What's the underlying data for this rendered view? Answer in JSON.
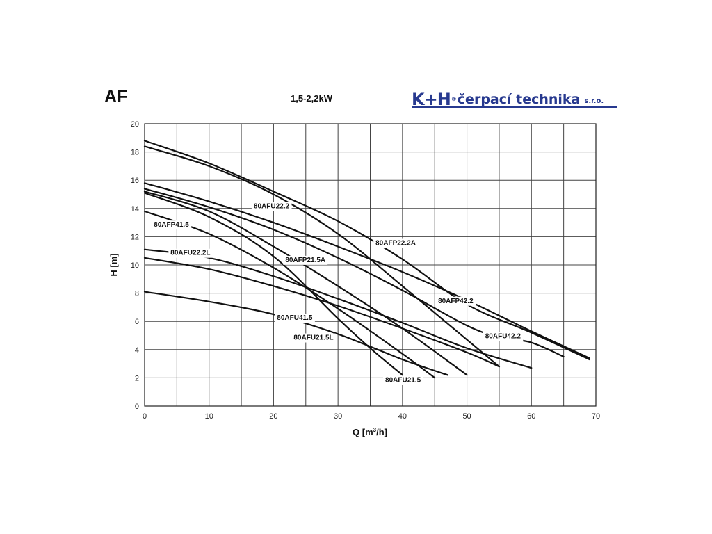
{
  "header": {
    "title": "AF",
    "subtitle": "1,5-2,2kW",
    "logo_mark": "K+H",
    "logo_text": "čerpací technika",
    "logo_suffix": "s.r.o."
  },
  "colors": {
    "curve": "#111111",
    "grid": "#444444",
    "brand": "#27398f"
  },
  "chart_data": {
    "type": "line",
    "title": "",
    "xlabel_main": "Q [m",
    "xlabel_sup": "3",
    "xlabel_tail": "/h]",
    "ylabel": "H [m]",
    "xlim": [
      0,
      70
    ],
    "ylim": [
      0,
      20
    ],
    "x_ticks": [
      0,
      10,
      20,
      30,
      40,
      50,
      60,
      70
    ],
    "y_ticks": [
      0,
      2,
      4,
      6,
      8,
      10,
      12,
      14,
      16,
      18,
      20
    ],
    "grid": true,
    "series": [
      {
        "name": "80AFU22.2",
        "x": [
          0,
          10,
          20,
          30,
          40,
          50,
          55
        ],
        "y": [
          18.4,
          17.0,
          15.0,
          12.2,
          8.5,
          4.7,
          2.8
        ]
      },
      {
        "name": "80AFP22.2A",
        "x": [
          0,
          10,
          20,
          30,
          40,
          50,
          60,
          69
        ],
        "y": [
          18.8,
          17.2,
          15.2,
          13.1,
          10.4,
          7.2,
          5.2,
          3.3
        ]
      },
      {
        "name": "80AFP41.5",
        "x": [
          0,
          10,
          20,
          30,
          40,
          45
        ],
        "y": [
          13.8,
          12.2,
          9.8,
          6.9,
          3.7,
          2.0
        ]
      },
      {
        "name": "80AFU22.2L",
        "x": [
          0,
          10,
          20,
          30,
          40,
          50,
          60
        ],
        "y": [
          11.1,
          10.5,
          9.2,
          7.6,
          5.9,
          4.1,
          2.7
        ]
      },
      {
        "name": "80AFP21.5A",
        "x": [
          0,
          10,
          20,
          30,
          40,
          50
        ],
        "y": [
          15.2,
          13.8,
          11.3,
          8.5,
          5.5,
          2.2
        ]
      },
      {
        "name": "80AFP42.2",
        "x": [
          0,
          10,
          20,
          30,
          40,
          50,
          60,
          69
        ],
        "y": [
          15.8,
          14.5,
          13.0,
          11.3,
          9.5,
          7.5,
          5.3,
          3.4
        ]
      },
      {
        "name": "80AFU41.5",
        "x": [
          0,
          10,
          20,
          30,
          40,
          47
        ],
        "y": [
          8.1,
          7.4,
          6.5,
          5.1,
          3.3,
          2.2
        ]
      },
      {
        "name": "80AFU42.2",
        "x": [
          0,
          10,
          20,
          30,
          40,
          50,
          55,
          60,
          65
        ],
        "y": [
          15.4,
          14.1,
          12.5,
          10.5,
          8.2,
          5.7,
          4.9,
          4.5,
          3.5
        ]
      },
      {
        "name": "80AFU21.5L",
        "x": [
          0,
          10,
          20,
          30,
          40,
          50,
          55
        ],
        "y": [
          10.5,
          9.7,
          8.5,
          7.1,
          5.5,
          3.8,
          2.8
        ]
      },
      {
        "name": "80AFU21.5",
        "x": [
          0,
          10,
          20,
          30,
          35,
          40
        ],
        "y": [
          15.1,
          13.4,
          10.6,
          6.2,
          4.1,
          2.2
        ]
      }
    ],
    "labels": [
      {
        "text": "80AFU22.2",
        "x": 16.6,
        "y": 14.2
      },
      {
        "text": "80AFP22.2A",
        "x": 35.5,
        "y": 11.6
      },
      {
        "text": "80AFP41.5",
        "x": 1.1,
        "y": 12.9
      },
      {
        "text": "80AFU22.2L",
        "x": 3.7,
        "y": 10.9
      },
      {
        "text": "80AFP21.5A",
        "x": 21.5,
        "y": 10.4
      },
      {
        "text": "80AFP42.2",
        "x": 45.2,
        "y": 7.5
      },
      {
        "text": "80AFU41.5",
        "x": 20.2,
        "y": 6.3
      },
      {
        "text": "80AFU42.2",
        "x": 52.5,
        "y": 5.0
      },
      {
        "text": "80AFU21.5L",
        "x": 22.8,
        "y": 4.9
      },
      {
        "text": "80AFU21.5",
        "x": 37.0,
        "y": 1.9
      }
    ]
  }
}
